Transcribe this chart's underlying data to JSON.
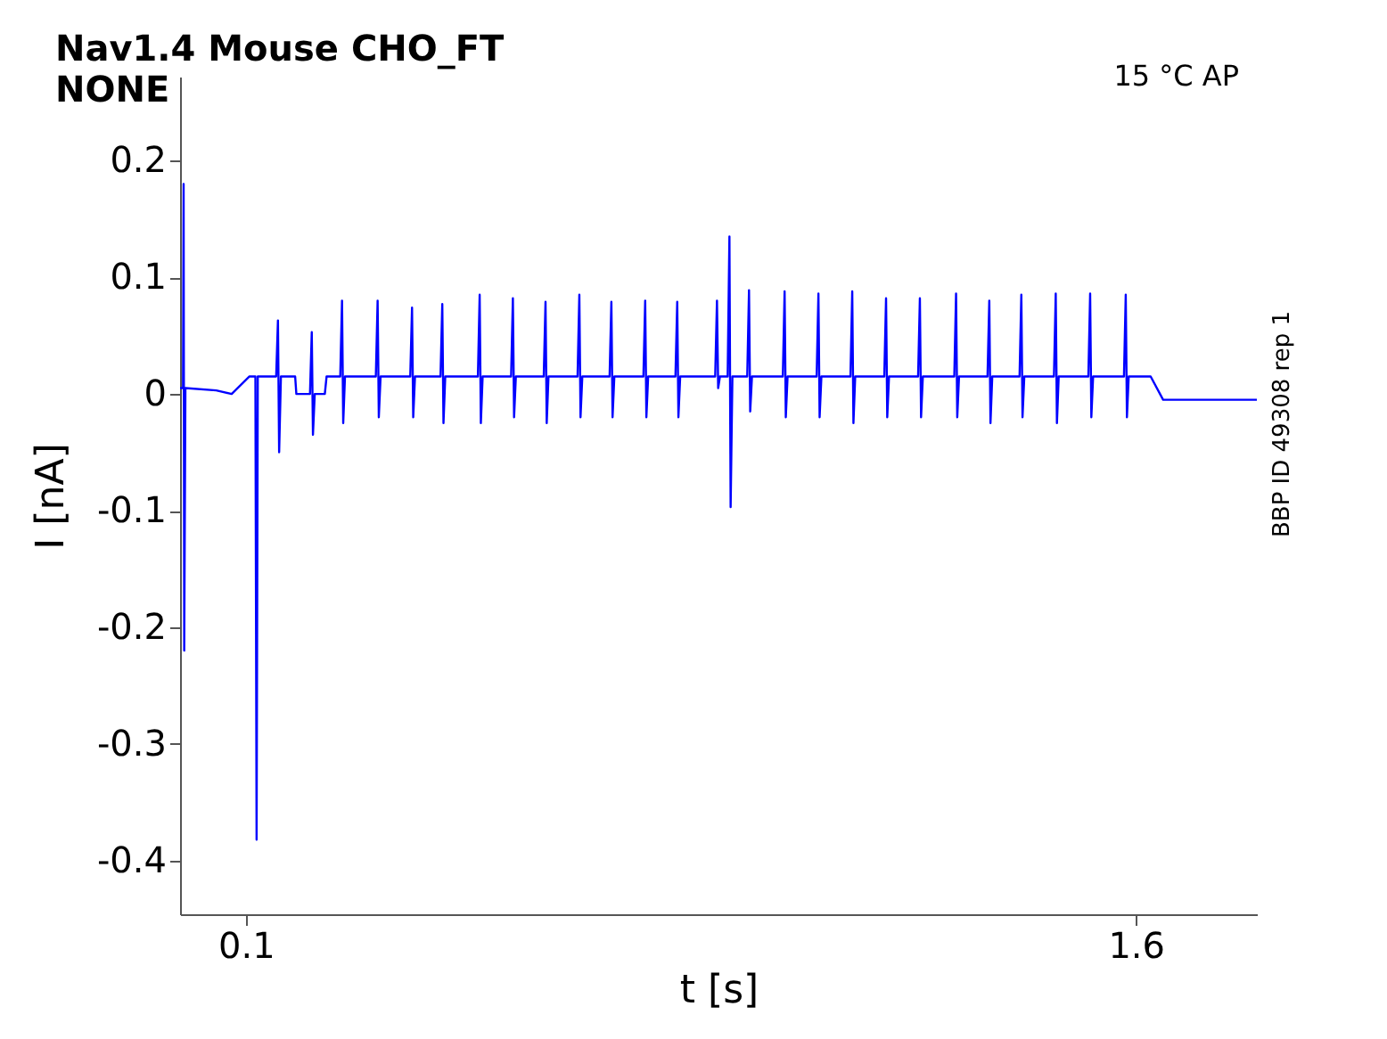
{
  "chart_data": {
    "type": "line",
    "title": "Nav1.4  Mouse  CHO_FT",
    "subtitle": "NONE",
    "xlabel": "t [s]",
    "ylabel": "I [nA]",
    "annotations": [
      "15 °C  AP",
      "BBP ID 49308 rep 1"
    ],
    "xlim": [
      -0.011,
      1.804
    ],
    "ylim": [
      -0.446,
      0.272
    ],
    "xticks": [
      0.1,
      1.6
    ],
    "yticks": [
      -0.4,
      -0.3,
      -0.2,
      -0.1,
      0,
      0.1,
      0.2
    ],
    "grid": false,
    "marker": "none",
    "line_style": "solid",
    "series": [
      {
        "color": "#0000ff",
        "x": [
          -0.011,
          -0.006,
          -0.005,
          -0.004,
          -0.002,
          0.05,
          0.076,
          0.106,
          0.116,
          0.118,
          0.12,
          0.151,
          0.154,
          0.156,
          0.159,
          0.183,
          0.185,
          0.208,
          0.211,
          0.213,
          0.216,
          0.233,
          0.236,
          0.259,
          0.262,
          0.264,
          0.267,
          0.319,
          0.322,
          0.324,
          0.327,
          0.377,
          0.38,
          0.382,
          0.385,
          0.428,
          0.431,
          0.433,
          0.436,
          0.491,
          0.494,
          0.496,
          0.499,
          0.547,
          0.55,
          0.552,
          0.555,
          0.602,
          0.605,
          0.607,
          0.61,
          0.659,
          0.662,
          0.664,
          0.667,
          0.713,
          0.716,
          0.718,
          0.721,
          0.77,
          0.773,
          0.775,
          0.778,
          0.824,
          0.827,
          0.829,
          0.832,
          0.891,
          0.894,
          0.896,
          0.899,
          0.912,
          0.915,
          0.917,
          0.92,
          0.945,
          0.948,
          0.95,
          0.953,
          1.005,
          1.008,
          1.01,
          1.013,
          1.062,
          1.065,
          1.067,
          1.07,
          1.119,
          1.122,
          1.124,
          1.127,
          1.176,
          1.179,
          1.181,
          1.184,
          1.233,
          1.236,
          1.238,
          1.241,
          1.294,
          1.297,
          1.299,
          1.302,
          1.35,
          1.353,
          1.355,
          1.358,
          1.404,
          1.407,
          1.409,
          1.412,
          1.462,
          1.465,
          1.467,
          1.47,
          1.52,
          1.523,
          1.525,
          1.528,
          1.58,
          1.583,
          1.585,
          1.588,
          1.625,
          1.646,
          1.7,
          1.804
        ],
        "values": [
          0.005,
          0.005,
          0.18,
          -0.22,
          0.005,
          0.003,
          0.0,
          0.015,
          0.015,
          -0.382,
          0.015,
          0.015,
          0.063,
          -0.05,
          0.015,
          0.015,
          0.0,
          0.0,
          0.053,
          -0.035,
          0.0,
          0.0,
          0.015,
          0.015,
          0.08,
          -0.025,
          0.015,
          0.015,
          0.08,
          -0.02,
          0.015,
          0.015,
          0.074,
          -0.02,
          0.015,
          0.015,
          0.077,
          -0.025,
          0.015,
          0.015,
          0.085,
          -0.025,
          0.015,
          0.015,
          0.082,
          -0.02,
          0.015,
          0.015,
          0.079,
          -0.025,
          0.015,
          0.015,
          0.085,
          -0.02,
          0.015,
          0.015,
          0.079,
          -0.02,
          0.015,
          0.015,
          0.08,
          -0.02,
          0.015,
          0.015,
          0.079,
          -0.02,
          0.015,
          0.015,
          0.08,
          0.005,
          0.015,
          0.015,
          0.135,
          -0.097,
          0.015,
          0.015,
          0.089,
          -0.015,
          0.015,
          0.015,
          0.088,
          -0.02,
          0.015,
          0.015,
          0.086,
          -0.02,
          0.015,
          0.015,
          0.088,
          -0.025,
          0.015,
          0.015,
          0.082,
          -0.02,
          0.015,
          0.015,
          0.082,
          -0.02,
          0.015,
          0.015,
          0.086,
          -0.02,
          0.015,
          0.015,
          0.08,
          -0.025,
          0.015,
          0.015,
          0.085,
          -0.02,
          0.015,
          0.015,
          0.086,
          -0.025,
          0.015,
          0.015,
          0.086,
          -0.02,
          0.015,
          0.015,
          0.085,
          -0.02,
          0.015,
          0.015,
          -0.005,
          -0.005,
          -0.005
        ]
      }
    ]
  }
}
